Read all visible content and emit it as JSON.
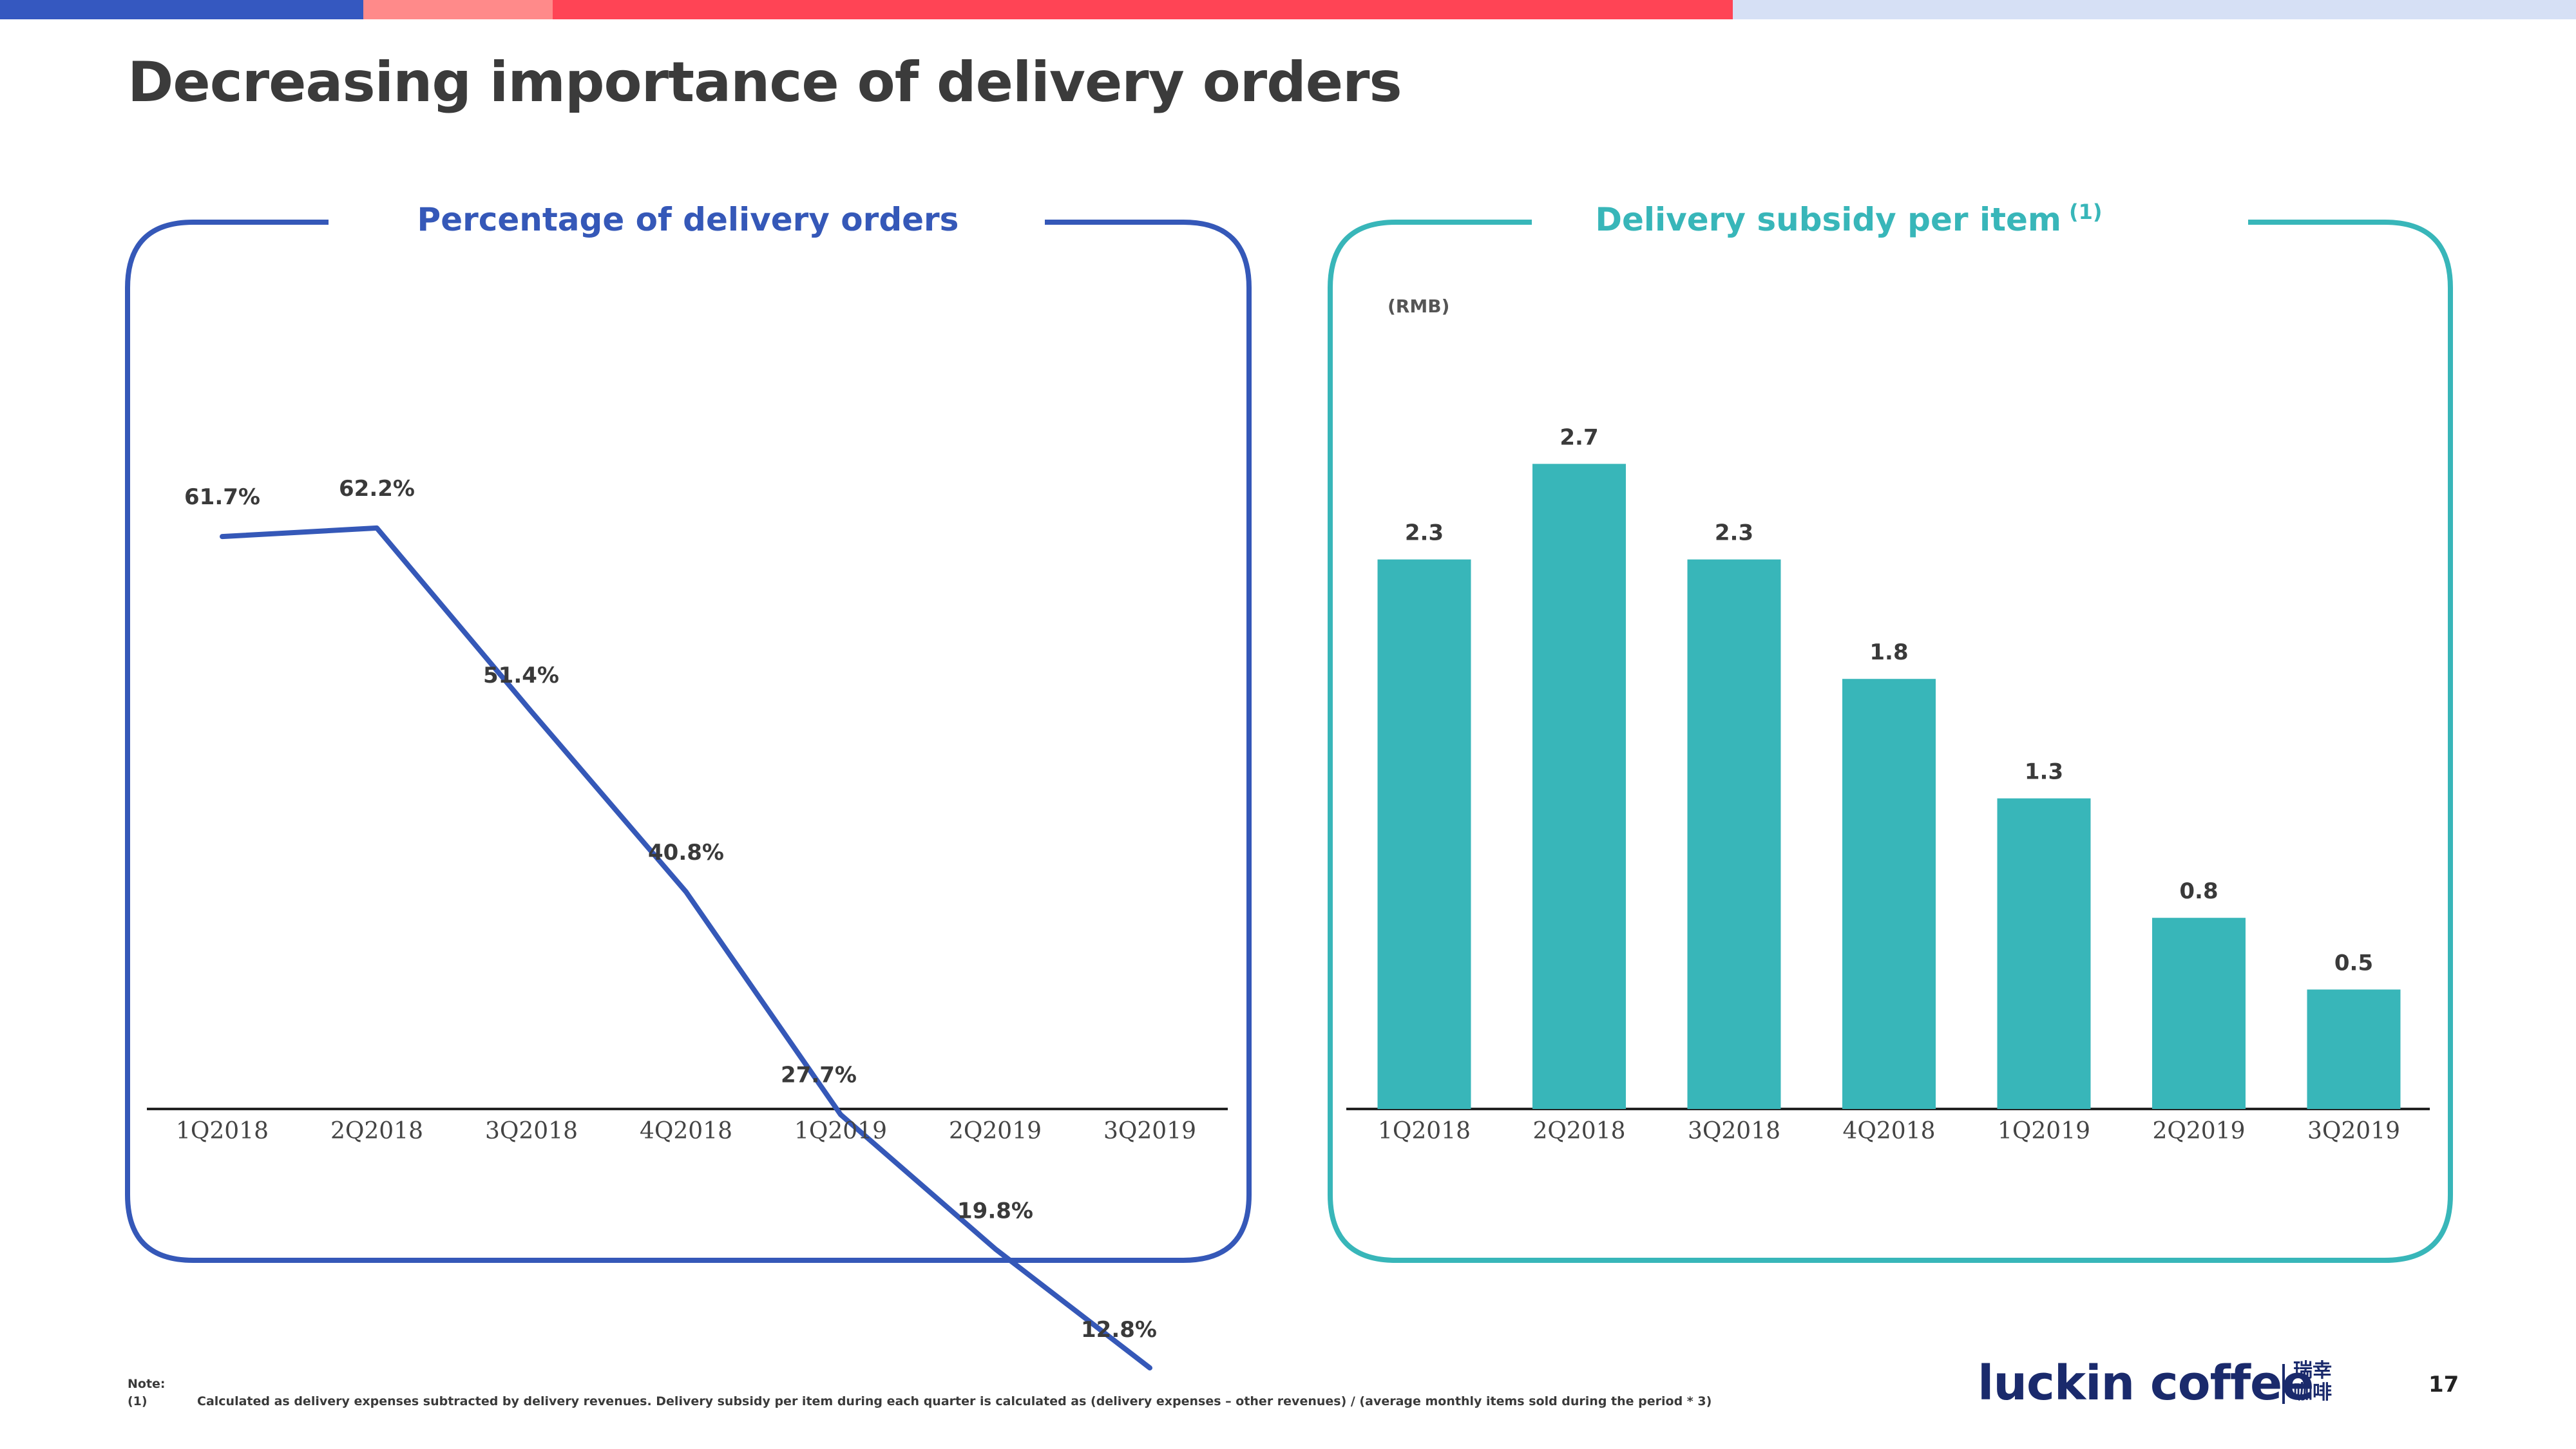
{
  "header": {
    "title": "Decreasing importance of delivery orders",
    "bar_colors": [
      "#3558c0",
      "#ff8a8a",
      "#ff4455",
      "#d6e0f5"
    ]
  },
  "chart_data": [
    {
      "type": "line",
      "title": "Percentage of delivery orders",
      "categories": [
        "1Q2018",
        "2Q2018",
        "3Q2018",
        "4Q2018",
        "1Q2019",
        "2Q2019",
        "3Q2019"
      ],
      "values": [
        61.7,
        62.2,
        51.4,
        40.8,
        27.7,
        19.8,
        12.8
      ],
      "data_labels": [
        "61.7%",
        "62.2%",
        "51.4%",
        "40.8%",
        "27.7%",
        "19.8%",
        "12.8%"
      ],
      "unit": "%",
      "ylim": [
        0,
        100
      ],
      "grid": false,
      "color": "#3558b8"
    },
    {
      "type": "bar",
      "title": "Delivery subsidy per item",
      "title_note": "(1)",
      "ylabel": "(RMB)",
      "categories": [
        "1Q2018",
        "2Q2018",
        "3Q2018",
        "4Q2018",
        "1Q2019",
        "2Q2019",
        "3Q2019"
      ],
      "values": [
        2.3,
        2.7,
        2.3,
        1.8,
        1.3,
        0.8,
        0.5
      ],
      "data_labels": [
        "2.3",
        "2.7",
        "2.3",
        "1.8",
        "1.3",
        "0.8",
        "0.5"
      ],
      "ylim": [
        0,
        3.4
      ],
      "grid": false,
      "color": "#38b6b9"
    }
  ],
  "footer": {
    "note_label": "Note:",
    "note_marker": "(1)",
    "note_text": "Calculated as delivery expenses subtracted by delivery revenues. Delivery subsidy per item during each quarter  is calculated as (delivery expenses – other revenues) / (average monthly items sold during the period * 3)",
    "logo_text": "luckin coffee",
    "logo_cn": "瑞幸咖啡",
    "page_number": "17"
  }
}
